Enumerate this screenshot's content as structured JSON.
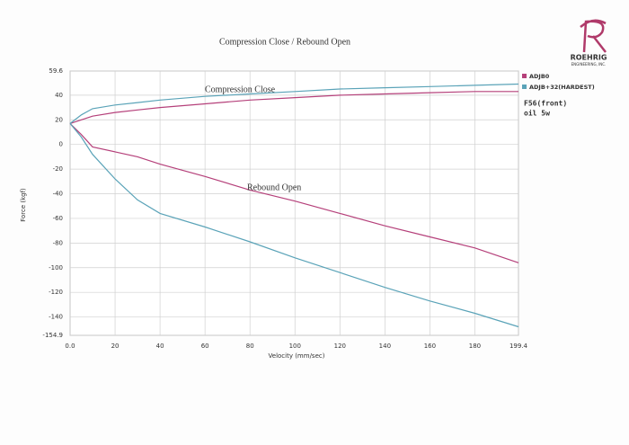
{
  "logo": {
    "name": "ROEHRIG",
    "subtitle": "ENGINEERING, INC."
  },
  "chart_data": {
    "type": "line",
    "title": "Compression Close / Rebound Open",
    "x_label": "Velocity (mm/sec)",
    "y_label": "Force (kgf)",
    "annotations": {
      "compression": "Compression Close",
      "rebound": "Rebound Open"
    },
    "notes": [
      "F56(front)",
      "oil 5w"
    ],
    "x": [
      0,
      5,
      10,
      20,
      30,
      40,
      60,
      80,
      100,
      120,
      140,
      160,
      180,
      199.4
    ],
    "series": [
      {
        "name": "ADJB0",
        "color": "#b5407a",
        "compression": [
          17,
          20,
          23,
          26,
          28,
          30,
          33,
          36,
          38,
          40,
          41,
          42,
          43,
          43
        ],
        "rebound": [
          17,
          8,
          -2,
          -6,
          -10,
          -16,
          -26,
          -37,
          -46,
          -56,
          -66,
          -75,
          -84,
          -96
        ]
      },
      {
        "name": "ADJB+32(HARDEST)",
        "color": "#5aa3b8",
        "compression": [
          17,
          24,
          29,
          32,
          34,
          36,
          39,
          41,
          43,
          45,
          46,
          47,
          48,
          49
        ],
        "rebound": [
          17,
          6,
          -8,
          -28,
          -45,
          -56,
          -67,
          -79,
          -92,
          -104,
          -116,
          -127,
          -137,
          -148
        ]
      }
    ],
    "xlim": [
      0,
      199.4
    ],
    "ylim": [
      -154.9,
      59.6
    ],
    "xticks": [
      {
        "value": 0,
        "label": "0.0"
      },
      20,
      40,
      60,
      80,
      100,
      120,
      140,
      160,
      180,
      199.4
    ],
    "yticks": [
      59.6,
      40,
      20,
      0,
      -20,
      -40,
      -60,
      -80,
      -100,
      -120,
      -140,
      -154.9
    ],
    "grid": true,
    "legend": "right"
  }
}
